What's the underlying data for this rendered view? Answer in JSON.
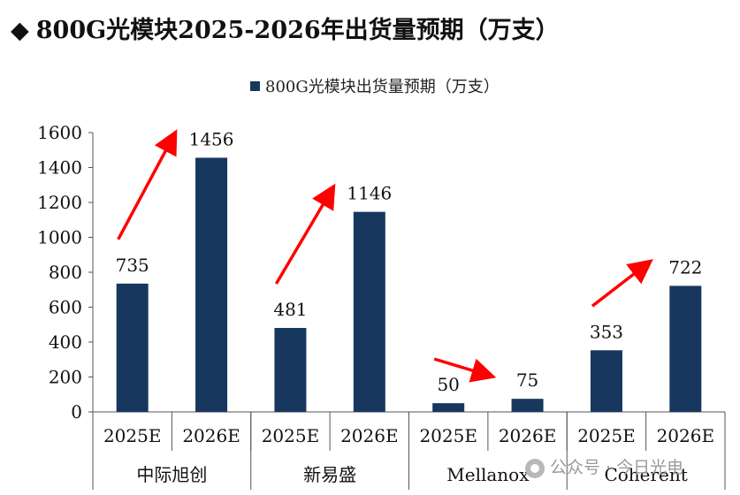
{
  "page_title": "800G光模块2025-2026年出货量预期（万支）",
  "watermark": "公众号 · 今日光电",
  "chart_data": {
    "type": "bar",
    "legend": "800G光模块出货量预期（万支）",
    "legend_position": "top-center",
    "bar_color": "#17375e",
    "arrow_color": "#ff0000",
    "ylim": [
      0,
      1600
    ],
    "yticks": [
      0,
      200,
      400,
      600,
      800,
      1000,
      1200,
      1400,
      1600
    ],
    "categories": [
      "2025E",
      "2026E",
      "2025E",
      "2026E",
      "2025E",
      "2026E",
      "2025E",
      "2026E"
    ],
    "groups": [
      "中际旭创",
      "新易盛",
      "Mellanox",
      "Coherent"
    ],
    "values": [
      735,
      1456,
      481,
      1146,
      50,
      75,
      353,
      722
    ],
    "value_labels": [
      "735",
      "1456",
      "481",
      "1146",
      "50",
      "75",
      "353",
      "722"
    ],
    "grid": false
  }
}
